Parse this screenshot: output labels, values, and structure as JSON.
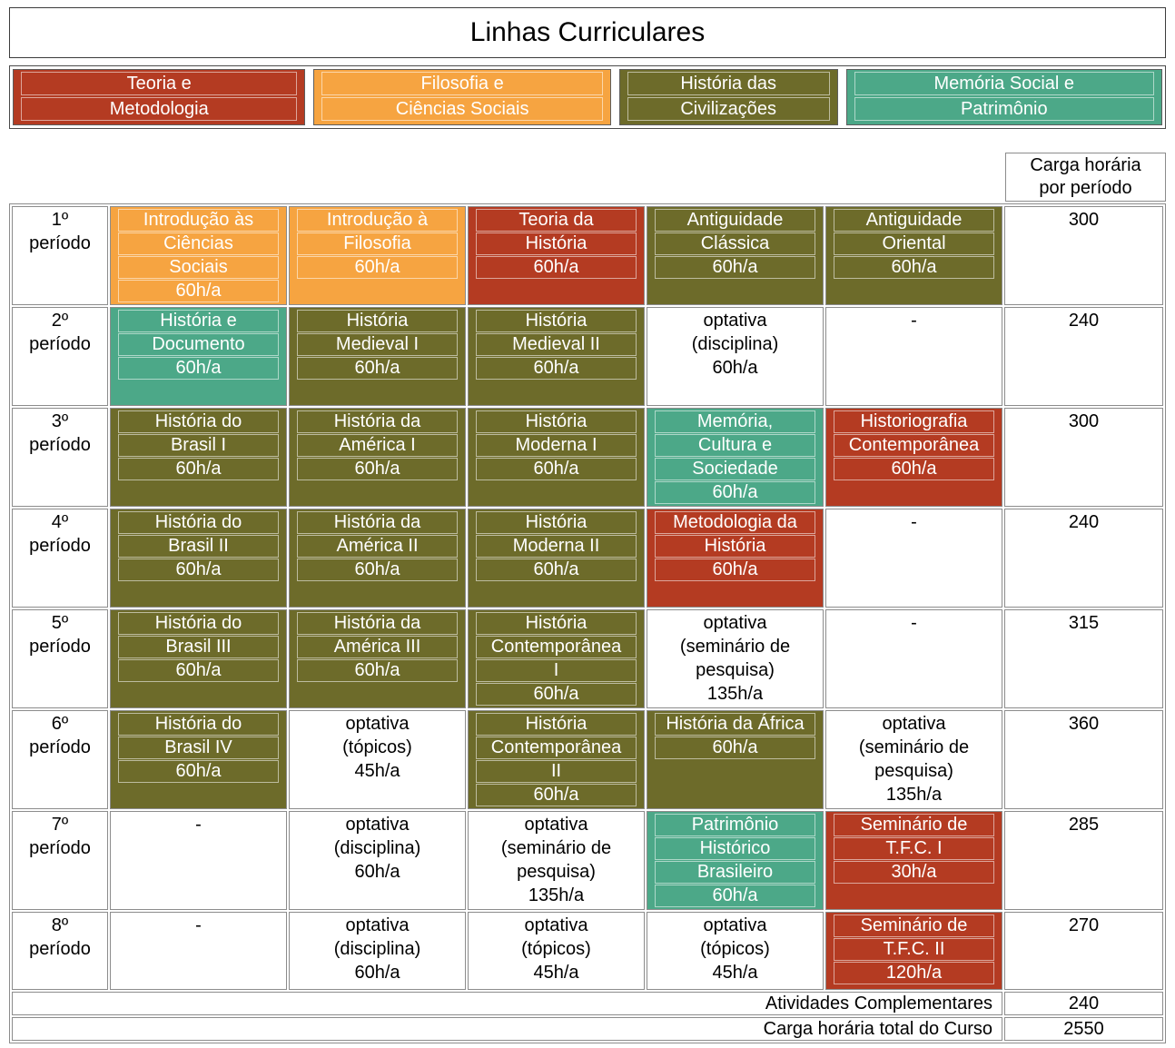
{
  "title": "Linhas Curriculares",
  "colors": {
    "red": "#b43b22",
    "orange": "#f6a441",
    "olive": "#6d6b2a",
    "teal": "#4ca888"
  },
  "legend": [
    {
      "name": "teoria-e-metodologia",
      "color": "red",
      "lines": [
        "Teoria e",
        "Metodologia"
      ]
    },
    {
      "name": "filosofia-e-ciencias-sociais",
      "color": "orange",
      "lines": [
        "Filosofia e",
        "Ciências Sociais"
      ]
    },
    {
      "name": "historia-das-civilizacoes",
      "color": "olive",
      "lines": [
        "História das",
        "Civilizações"
      ]
    },
    {
      "name": "memoria-social-e-patrimonio",
      "color": "teal",
      "lines": [
        "Memória Social e",
        "Patrimônio"
      ]
    }
  ],
  "workload_header_lines": [
    "Carga horária",
    "por período"
  ],
  "rows": [
    {
      "period_lines": [
        "1º",
        "período"
      ],
      "workload": "300",
      "cells": [
        {
          "type": "course",
          "color": "orange",
          "lines": [
            "Introdução às",
            "Ciências",
            "Sociais",
            "60h/a"
          ]
        },
        {
          "type": "course",
          "color": "orange",
          "lines": [
            "Introdução à",
            "Filosofia",
            "60h/a"
          ]
        },
        {
          "type": "course",
          "color": "red",
          "lines": [
            "Teoria da",
            "História",
            "60h/a"
          ]
        },
        {
          "type": "course",
          "color": "olive",
          "lines": [
            "Antiguidade",
            "Clássica",
            "60h/a"
          ]
        },
        {
          "type": "course",
          "color": "olive",
          "lines": [
            "Antiguidade",
            "Oriental",
            "60h/a"
          ]
        }
      ]
    },
    {
      "period_lines": [
        "2º",
        "período"
      ],
      "workload": "240",
      "cells": [
        {
          "type": "course",
          "color": "teal",
          "lines": [
            "História e",
            "Documento",
            "60h/a"
          ]
        },
        {
          "type": "course",
          "color": "olive",
          "lines": [
            "História",
            "Medieval I",
            "60h/a"
          ]
        },
        {
          "type": "course",
          "color": "olive",
          "lines": [
            "História",
            "Medieval II",
            "60h/a"
          ]
        },
        {
          "type": "plain",
          "lines": [
            "optativa",
            "(disciplina)",
            "60h/a"
          ]
        },
        {
          "type": "plain",
          "lines": [
            "-"
          ]
        }
      ]
    },
    {
      "period_lines": [
        "3º",
        "período"
      ],
      "workload": "300",
      "cells": [
        {
          "type": "course",
          "color": "olive",
          "lines": [
            "História do",
            "Brasil I",
            "60h/a"
          ]
        },
        {
          "type": "course",
          "color": "olive",
          "lines": [
            "História da",
            "América I",
            "60h/a"
          ]
        },
        {
          "type": "course",
          "color": "olive",
          "lines": [
            "História",
            "Moderna I",
            "60h/a"
          ]
        },
        {
          "type": "course",
          "color": "teal",
          "lines": [
            "Memória,",
            "Cultura e",
            "Sociedade",
            "60h/a"
          ]
        },
        {
          "type": "course",
          "color": "red",
          "lines": [
            "Historiografia",
            "Contemporânea",
            "60h/a"
          ]
        }
      ]
    },
    {
      "period_lines": [
        "4º",
        "período"
      ],
      "workload": "240",
      "cells": [
        {
          "type": "course",
          "color": "olive",
          "lines": [
            "História do",
            "Brasil II",
            "60h/a"
          ]
        },
        {
          "type": "course",
          "color": "olive",
          "lines": [
            "História da",
            "América II",
            "60h/a"
          ]
        },
        {
          "type": "course",
          "color": "olive",
          "lines": [
            "História",
            "Moderna II",
            "60h/a"
          ]
        },
        {
          "type": "course",
          "color": "red",
          "lines": [
            "Metodologia da",
            "História",
            "60h/a"
          ]
        },
        {
          "type": "plain",
          "lines": [
            "-"
          ]
        }
      ]
    },
    {
      "period_lines": [
        "5º",
        "período"
      ],
      "workload": "315",
      "cells": [
        {
          "type": "course",
          "color": "olive",
          "lines": [
            "História do",
            "Brasil III",
            "60h/a"
          ]
        },
        {
          "type": "course",
          "color": "olive",
          "lines": [
            "História da",
            "América III",
            "60h/a"
          ]
        },
        {
          "type": "course",
          "color": "olive",
          "lines": [
            "História",
            "Contemporânea",
            "I",
            "60h/a"
          ]
        },
        {
          "type": "plain",
          "lines": [
            "optativa",
            "(seminário de",
            "pesquisa)",
            "135h/a"
          ]
        },
        {
          "type": "plain",
          "lines": [
            "-"
          ]
        }
      ]
    },
    {
      "period_lines": [
        "6º",
        "período"
      ],
      "workload": "360",
      "cells": [
        {
          "type": "course",
          "color": "olive",
          "lines": [
            "História do",
            "Brasil IV",
            "60h/a"
          ]
        },
        {
          "type": "plain",
          "lines": [
            "optativa",
            "(tópicos)",
            "45h/a"
          ]
        },
        {
          "type": "course",
          "color": "olive",
          "lines": [
            "História",
            "Contemporânea",
            "II",
            "60h/a"
          ]
        },
        {
          "type": "course",
          "color": "olive",
          "lines": [
            "História da África",
            "60h/a"
          ]
        },
        {
          "type": "plain",
          "lines": [
            "optativa",
            "(seminário de",
            "pesquisa)",
            "135h/a"
          ]
        }
      ]
    },
    {
      "period_lines": [
        "7º",
        "período"
      ],
      "workload": "285",
      "cells": [
        {
          "type": "plain",
          "lines": [
            "-"
          ]
        },
        {
          "type": "plain",
          "lines": [
            "optativa",
            "(disciplina)",
            "60h/a"
          ]
        },
        {
          "type": "plain",
          "lines": [
            "optativa",
            "(seminário de",
            "pesquisa)",
            "135h/a"
          ]
        },
        {
          "type": "course",
          "color": "teal",
          "lines": [
            "Patrimônio",
            "Histórico",
            "Brasileiro",
            "60h/a"
          ]
        },
        {
          "type": "course",
          "color": "red",
          "lines": [
            "Seminário de",
            "T.F.C. I",
            "30h/a"
          ]
        }
      ]
    },
    {
      "period_lines": [
        "8º",
        "período"
      ],
      "workload": "270",
      "cells": [
        {
          "type": "plain",
          "lines": [
            "-"
          ]
        },
        {
          "type": "plain",
          "lines": [
            "optativa",
            "(disciplina)",
            "60h/a"
          ]
        },
        {
          "type": "plain",
          "lines": [
            "optativa",
            "(tópicos)",
            "45h/a"
          ]
        },
        {
          "type": "plain",
          "lines": [
            "optativa",
            "(tópicos)",
            "45h/a"
          ]
        },
        {
          "type": "course",
          "color": "red",
          "lines": [
            "Seminário de",
            "T.F.C. II",
            "120h/a"
          ]
        }
      ]
    }
  ],
  "footer_rows": [
    {
      "label": "Atividades Complementares",
      "value": "240"
    },
    {
      "label": "Carga horária total do Curso",
      "value": "2550"
    }
  ]
}
